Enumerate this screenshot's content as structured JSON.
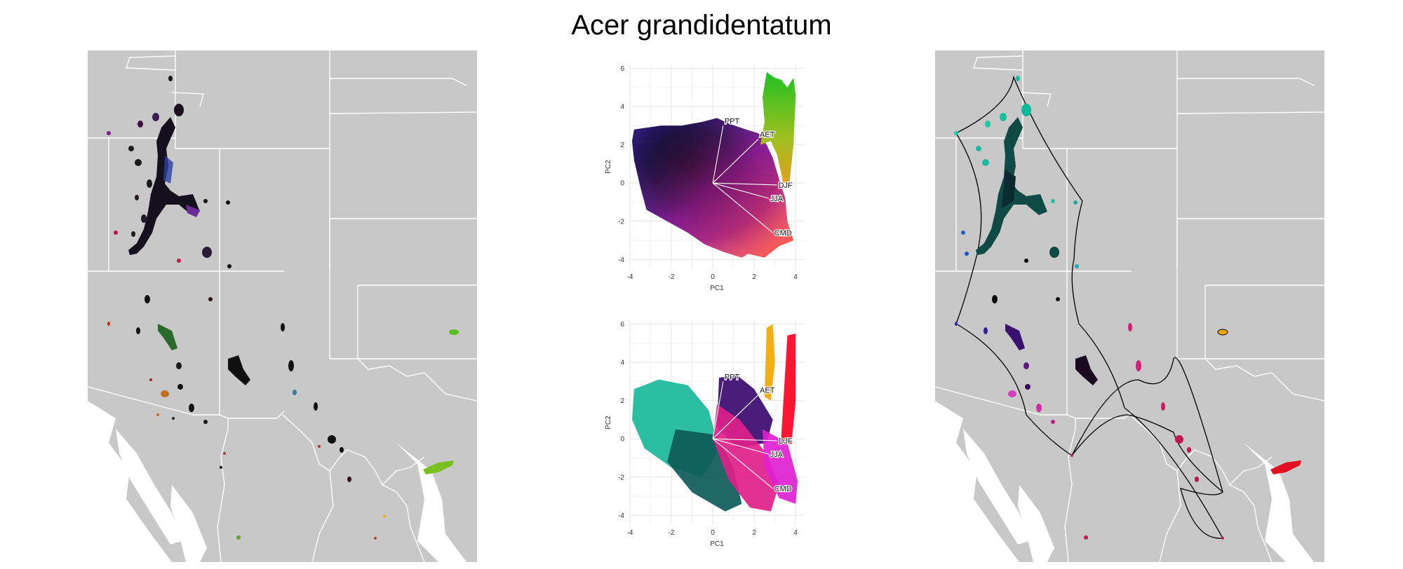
{
  "figure": {
    "title": "Acer grandidentatum"
  },
  "colors": {
    "map_land": "#c8c8c8",
    "map_background": "#ffffff",
    "boundary": "#ffffff",
    "grid": "#e6e6e6",
    "hull": "#000000"
  },
  "chart_data": [
    {
      "type": "scatter",
      "panel": "pca-top",
      "xlabel": "PC1",
      "ylabel": "PC2",
      "xlim": [
        -4,
        4.4
      ],
      "ylim": [
        -4.5,
        6.2
      ],
      "xticks": [
        "-4",
        "-2",
        "0",
        "2",
        "4"
      ],
      "yticks": [
        "-4",
        "-2",
        "0",
        "2",
        "4",
        "6"
      ],
      "grid": true,
      "vectors": [
        {
          "label": "PPT",
          "x": 0.5,
          "y": 3.0
        },
        {
          "label": "AET",
          "x": 2.2,
          "y": 2.3
        },
        {
          "label": "CMD",
          "x": 2.9,
          "y": -2.6
        },
        {
          "label": "JJA",
          "x": 2.7,
          "y": -0.8
        },
        {
          "label": "DJF",
          "x": 3.1,
          "y": -0.1
        }
      ]
    },
    {
      "type": "scatter",
      "panel": "pca-bottom",
      "xlabel": "PC1",
      "ylabel": "PC2",
      "xlim": [
        -4,
        4.4
      ],
      "ylim": [
        -4.5,
        6.2
      ],
      "xticks": [
        "-4",
        "-2",
        "0",
        "2",
        "4"
      ],
      "yticks": [
        "-4",
        "-2",
        "0",
        "2",
        "4",
        "6"
      ],
      "grid": true,
      "vectors": [
        {
          "label": "PPT",
          "x": 0.5,
          "y": 3.0
        },
        {
          "label": "AET",
          "x": 2.2,
          "y": 2.3
        },
        {
          "label": "CMD",
          "x": 2.9,
          "y": -2.6
        },
        {
          "label": "JJA",
          "x": 2.7,
          "y": -0.8
        },
        {
          "label": "DJF",
          "x": 3.1,
          "y": -0.1
        }
      ],
      "clusters": [
        {
          "color": "#1ab89a",
          "cx": -1.6,
          "cy": 0.0
        },
        {
          "color": "#0d5a58",
          "cx": -0.8,
          "cy": -1.2
        },
        {
          "color": "#3a0a6e",
          "cx": 1.4,
          "cy": 1.5
        },
        {
          "color": "#e0208a",
          "cx": 1.8,
          "cy": -1.3
        },
        {
          "color": "#e01fd0",
          "cx": 3.3,
          "cy": -2.0
        },
        {
          "color": "#f0a800",
          "cx": 2.7,
          "cy": 3.8
        },
        {
          "color": "#ff0022",
          "cx": 3.7,
          "cy": 2.0
        }
      ]
    }
  ]
}
